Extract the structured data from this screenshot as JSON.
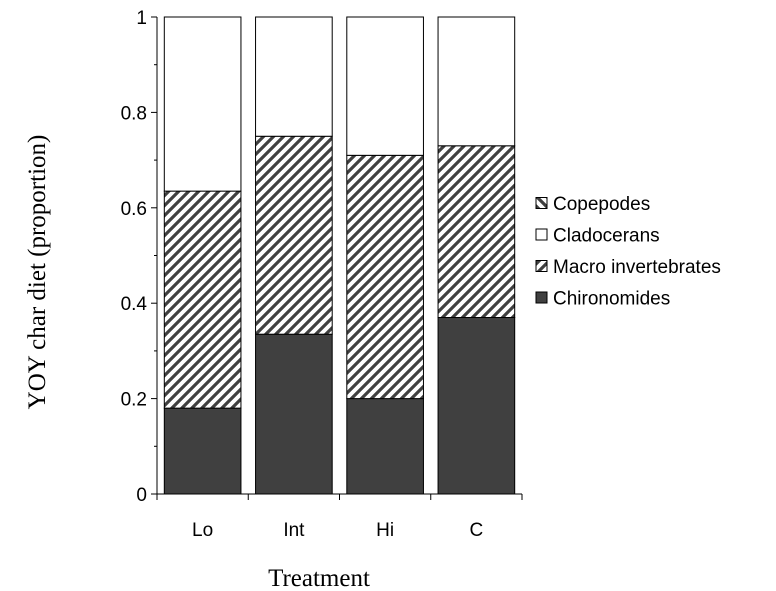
{
  "chart_data": {
    "type": "bar",
    "stacked": true,
    "title": "",
    "xlabel": "Treatment",
    "ylabel": "YOY char diet (proportion)",
    "categories": [
      "Lo",
      "Int",
      "Hi",
      "C"
    ],
    "ylim": [
      0,
      1
    ],
    "yticks": [
      0,
      0.2,
      0.4,
      0.6,
      0.8,
      1
    ],
    "ytick_labels": [
      "0",
      "0.2",
      "0.4",
      "0.6",
      "0.8",
      "1"
    ],
    "grid": false,
    "legend_position": "right",
    "series": [
      {
        "name": "Chironomides",
        "values": [
          0.18,
          0.335,
          0.2,
          0.37
        ],
        "fill": "solid",
        "color": "#404040"
      },
      {
        "name": "Macro invertebrates",
        "values": [
          0.455,
          0.415,
          0.51,
          0.36
        ],
        "fill": "hatch-forward",
        "color": "#404040"
      },
      {
        "name": "Cladocerans",
        "values": [
          0.365,
          0.25,
          0.29,
          0.27
        ],
        "fill": "solid",
        "color": "#ffffff"
      },
      {
        "name": "Copepodes",
        "values": [
          0,
          0,
          0,
          0
        ],
        "fill": "hatch-back",
        "color": "#404040"
      }
    ],
    "legend_order": [
      "Copepodes",
      "Cladocerans",
      "Macro invertebrates",
      "Chironomides"
    ]
  }
}
